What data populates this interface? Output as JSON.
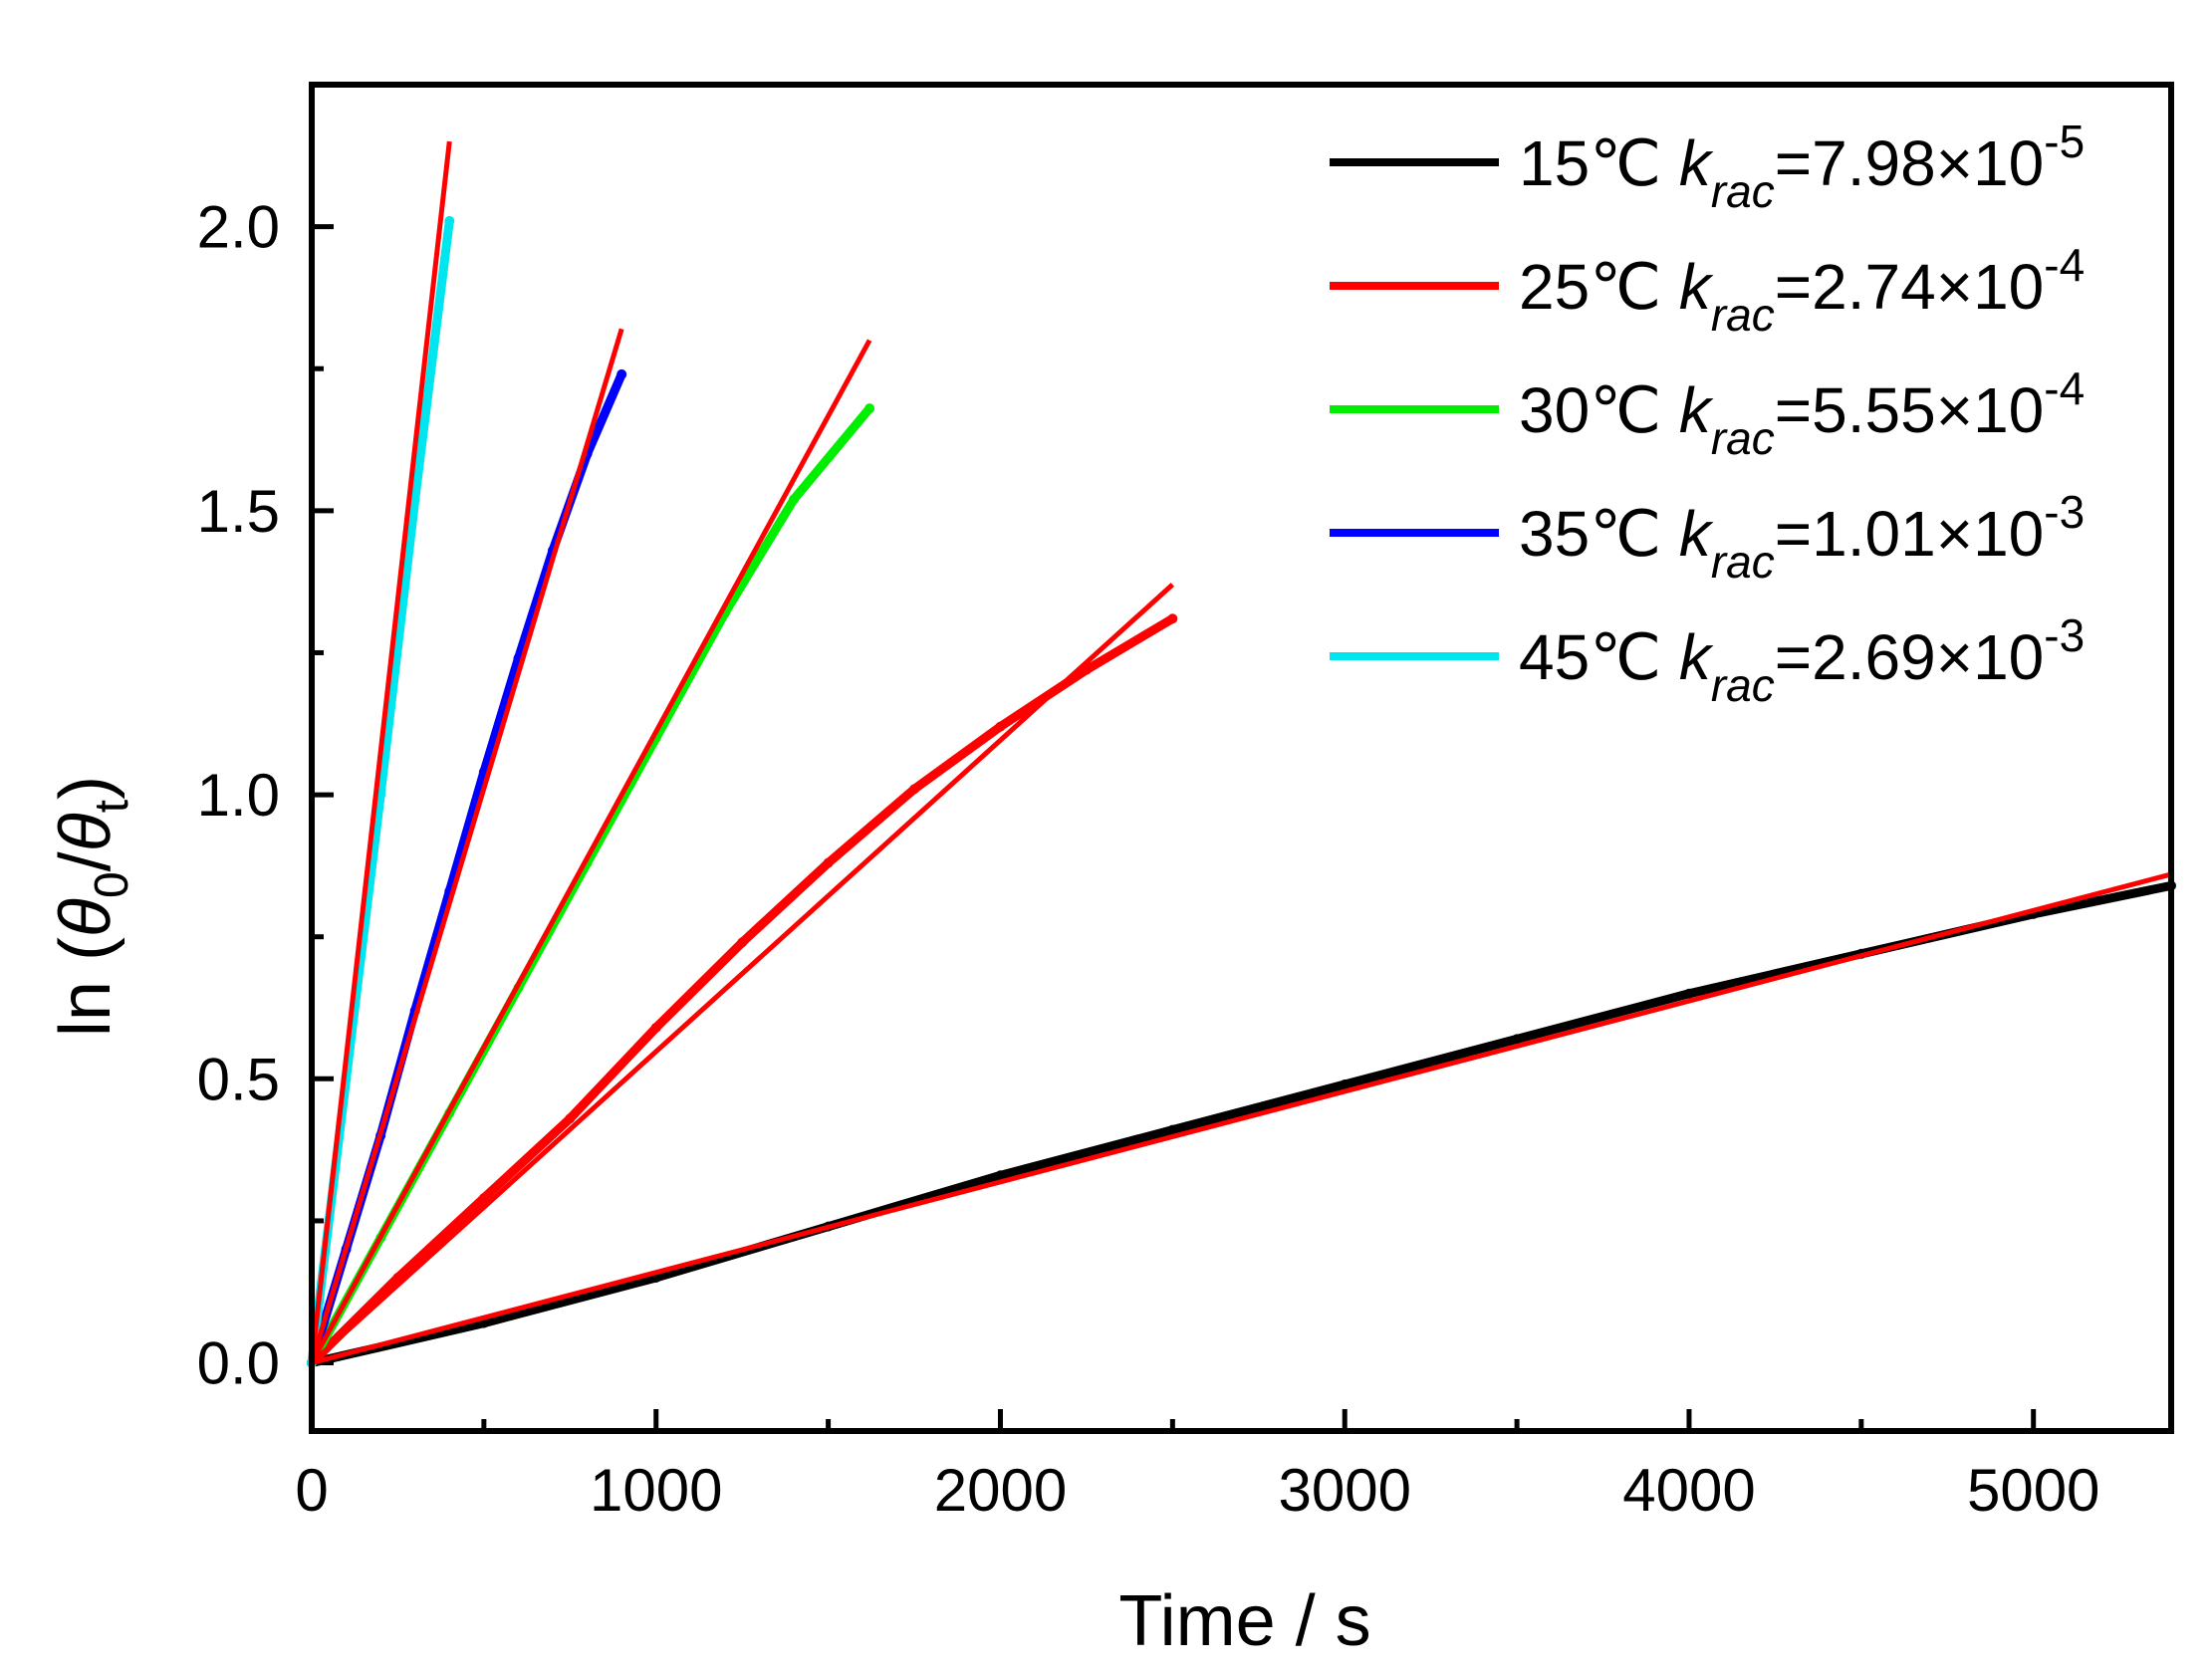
{
  "chart_data": {
    "type": "line",
    "title": "",
    "xlabel": "Time / s",
    "ylabel": {
      "prefix": "ln (",
      "theta0": "θ",
      "sub0": "0",
      "slash": "/",
      "thetat": "θ",
      "subt": "t",
      "suffix": ")"
    },
    "xlim": [
      0,
      5400
    ],
    "ylim": [
      -0.12,
      2.25
    ],
    "xticks": [
      0,
      1000,
      2000,
      3000,
      4000,
      5000
    ],
    "xtick_labels": [
      "0",
      "1000",
      "2000",
      "3000",
      "4000",
      "5000"
    ],
    "yticks": [
      0.0,
      0.5,
      1.0,
      1.5,
      2.0
    ],
    "ytick_labels": [
      "0.0",
      "0.5",
      "1.0",
      "1.5",
      "2.0"
    ],
    "grid": false,
    "legend_position": "top-right",
    "series": [
      {
        "name": "15℃",
        "temp": "15℃",
        "k_symbol": "k",
        "k_sub": "rac",
        "k_mantissa": "=7.98×10",
        "k_exp": "-5",
        "color": "#000000",
        "x": [
          0,
          500,
          1000,
          1500,
          2000,
          2500,
          3000,
          3500,
          4000,
          4500,
          5000,
          5400
        ],
        "y": [
          0.0,
          0.07,
          0.15,
          0.24,
          0.33,
          0.41,
          0.49,
          0.57,
          0.65,
          0.72,
          0.79,
          0.84
        ],
        "fit_x": [
          0,
          5400
        ],
        "fit_y": [
          0.0,
          0.86
        ],
        "fit_color": "#ff0000"
      },
      {
        "name": "25℃",
        "temp": "25℃",
        "k_symbol": "k",
        "k_sub": "rac",
        "k_mantissa": "=2.74×10",
        "k_exp": "-4",
        "color": "#ff0000",
        "x": [
          0,
          250,
          500,
          750,
          1000,
          1250,
          1500,
          1750,
          2000,
          2250,
          2500
        ],
        "y": [
          0.0,
          0.15,
          0.29,
          0.43,
          0.59,
          0.74,
          0.88,
          1.01,
          1.12,
          1.22,
          1.31
        ],
        "fit_x": [
          0,
          2500
        ],
        "fit_y": [
          0.0,
          1.37
        ],
        "fit_color": "#ff0000"
      },
      {
        "name": "30℃",
        "temp": "30℃",
        "k_symbol": "k",
        "k_sub": "rac",
        "k_mantissa": "=5.55×10",
        "k_exp": "-4",
        "color": "#00ee00",
        "x": [
          0,
          200,
          400,
          600,
          800,
          1000,
          1200,
          1400,
          1620
        ],
        "y": [
          0.0,
          0.22,
          0.44,
          0.66,
          0.88,
          1.1,
          1.32,
          1.52,
          1.68
        ],
        "fit_x": [
          0,
          1620
        ],
        "fit_y": [
          0.0,
          1.8
        ],
        "fit_color": "#ff0000"
      },
      {
        "name": "35℃",
        "temp": "35℃",
        "k_symbol": "k",
        "k_sub": "rac",
        "k_mantissa": "=1.01×10",
        "k_exp": "-3",
        "color": "#0000ff",
        "x": [
          0,
          100,
          200,
          300,
          400,
          500,
          600,
          700,
          800,
          900
        ],
        "y": [
          0.0,
          0.2,
          0.4,
          0.62,
          0.83,
          1.04,
          1.24,
          1.43,
          1.6,
          1.74
        ],
        "fit_x": [
          0,
          900
        ],
        "fit_y": [
          0.0,
          1.82
        ],
        "fit_color": "#ff0000"
      },
      {
        "name": "45℃",
        "temp": "45℃",
        "k_symbol": "k",
        "k_sub": "rac",
        "k_mantissa": "=2.69×10",
        "k_exp": "-3",
        "color": "#00e5ee",
        "x": [
          0,
          100,
          200,
          300,
          400
        ],
        "y": [
          0.0,
          0.5,
          1.0,
          1.52,
          2.01
        ],
        "fit_x": [
          0,
          400
        ],
        "fit_y": [
          0.0,
          2.15
        ],
        "fit_color": "#ff0000"
      }
    ]
  }
}
